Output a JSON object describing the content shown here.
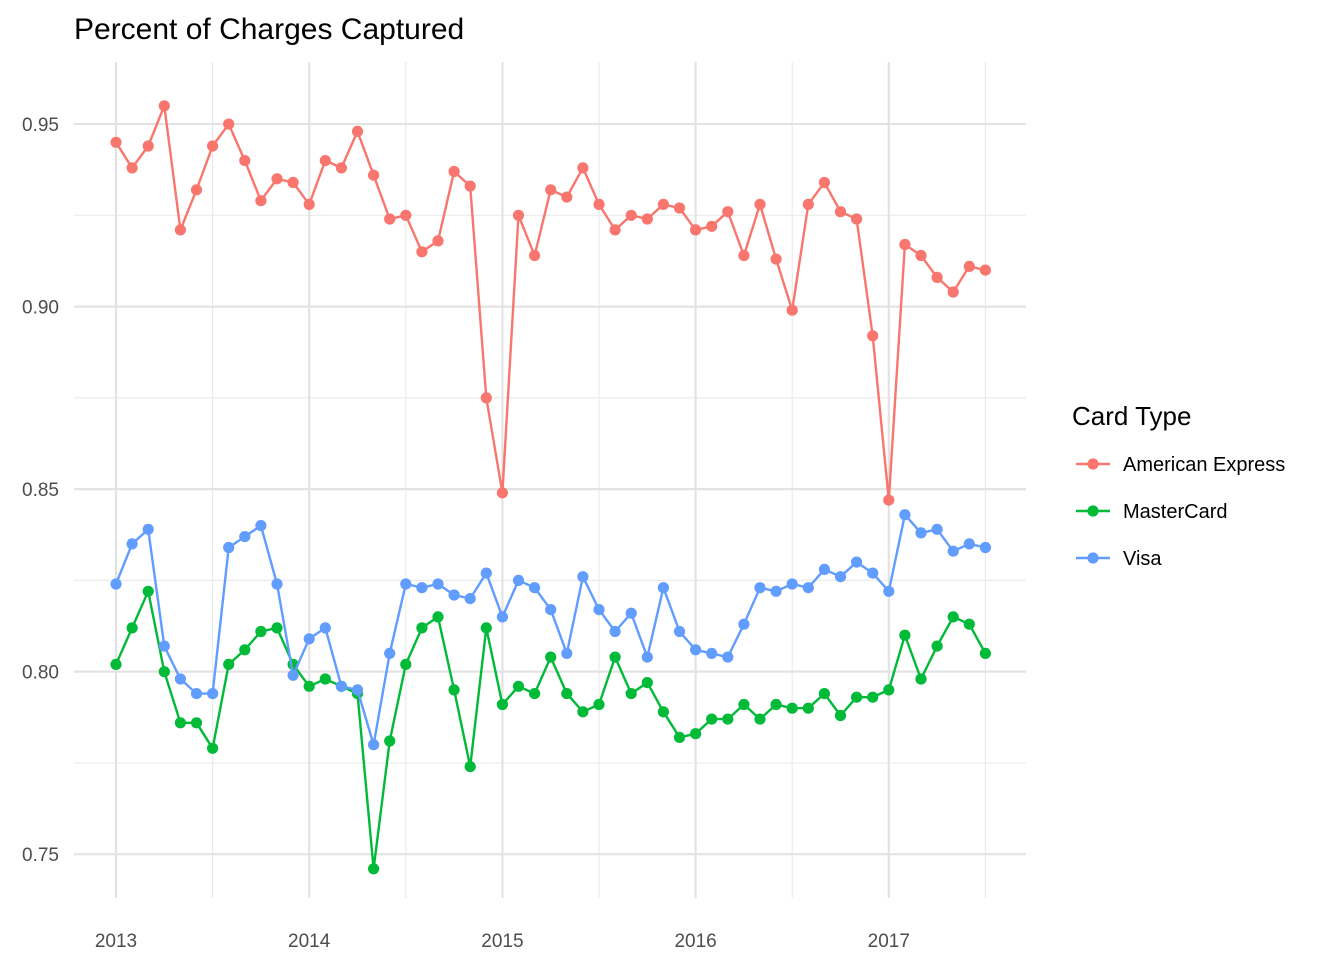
{
  "chart_data": {
    "type": "line",
    "title": "Percent of Charges Captured",
    "xlabel": "",
    "ylabel": "",
    "x_ticks": [
      "2013",
      "2014",
      "2015",
      "2016",
      "2017"
    ],
    "y_ticks": [
      "0.75",
      "0.80",
      "0.85",
      "0.90",
      "0.95"
    ],
    "ylim": [
      0.738,
      0.967
    ],
    "grid": true,
    "legend": {
      "title": "Card Type",
      "position": "right"
    },
    "x": [
      "2013-01",
      "2013-02",
      "2013-03",
      "2013-04",
      "2013-05",
      "2013-06",
      "2013-07",
      "2013-08",
      "2013-09",
      "2013-10",
      "2013-11",
      "2013-12",
      "2014-01",
      "2014-02",
      "2014-03",
      "2014-04",
      "2014-05",
      "2014-06",
      "2014-07",
      "2014-08",
      "2014-09",
      "2014-10",
      "2014-11",
      "2014-12",
      "2015-01",
      "2015-02",
      "2015-03",
      "2015-04",
      "2015-05",
      "2015-06",
      "2015-07",
      "2015-08",
      "2015-09",
      "2015-10",
      "2015-11",
      "2015-12",
      "2016-01",
      "2016-02",
      "2016-03",
      "2016-04",
      "2016-05",
      "2016-06",
      "2016-07",
      "2016-08",
      "2016-09",
      "2016-10",
      "2016-11",
      "2016-12",
      "2017-01",
      "2017-02",
      "2017-03",
      "2017-04",
      "2017-05",
      "2017-06",
      "2017-07"
    ],
    "series": [
      {
        "name": "American Express",
        "color": "#F8766D",
        "values": [
          0.945,
          0.938,
          0.944,
          0.955,
          0.921,
          0.932,
          0.944,
          0.95,
          0.94,
          0.929,
          0.935,
          0.934,
          0.928,
          0.94,
          0.938,
          0.948,
          0.936,
          0.924,
          0.925,
          0.915,
          0.918,
          0.937,
          0.933,
          0.875,
          0.849,
          0.925,
          0.914,
          0.932,
          0.93,
          0.938,
          0.928,
          0.921,
          0.925,
          0.924,
          0.928,
          0.927,
          0.921,
          0.922,
          0.926,
          0.914,
          0.928,
          0.913,
          0.899,
          0.928,
          0.934,
          0.926,
          0.924,
          0.892,
          0.847,
          0.917,
          0.914,
          0.908,
          0.904,
          0.911,
          0.91
        ]
      },
      {
        "name": "MasterCard",
        "color": "#00BA38",
        "values": [
          0.802,
          0.812,
          0.822,
          0.8,
          0.786,
          0.786,
          0.779,
          0.802,
          0.806,
          0.811,
          0.812,
          0.802,
          0.796,
          0.798,
          0.796,
          0.794,
          0.746,
          0.781,
          0.802,
          0.812,
          0.815,
          0.795,
          0.774,
          0.812,
          0.791,
          0.796,
          0.794,
          0.804,
          0.794,
          0.789,
          0.791,
          0.804,
          0.794,
          0.797,
          0.789,
          0.782,
          0.783,
          0.787,
          0.787,
          0.791,
          0.787,
          0.791,
          0.79,
          0.79,
          0.794,
          0.788,
          0.793,
          0.793,
          0.795,
          0.81,
          0.798,
          0.807,
          0.815,
          0.813,
          0.805
        ]
      },
      {
        "name": "Visa",
        "color": "#619CFF",
        "values": [
          0.824,
          0.835,
          0.839,
          0.807,
          0.798,
          0.794,
          0.794,
          0.834,
          0.837,
          0.84,
          0.824,
          0.799,
          0.809,
          0.812,
          0.796,
          0.795,
          0.78,
          0.805,
          0.824,
          0.823,
          0.824,
          0.821,
          0.82,
          0.827,
          0.815,
          0.825,
          0.823,
          0.817,
          0.805,
          0.826,
          0.817,
          0.811,
          0.816,
          0.804,
          0.823,
          0.811,
          0.806,
          0.805,
          0.804,
          0.813,
          0.823,
          0.822,
          0.824,
          0.823,
          0.828,
          0.826,
          0.83,
          0.827,
          0.822,
          0.843,
          0.838,
          0.839,
          0.833,
          0.835,
          0.834
        ]
      }
    ]
  }
}
